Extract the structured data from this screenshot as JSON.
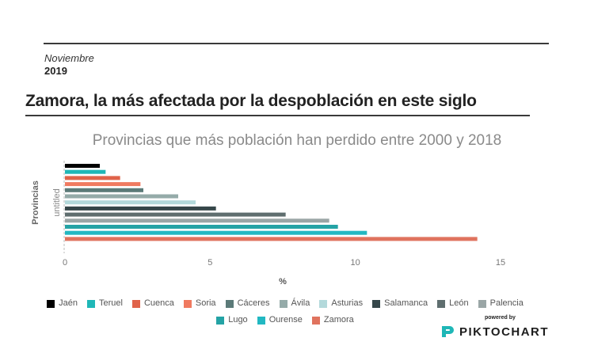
{
  "header": {
    "month": "Noviembre",
    "year": "2019",
    "headline": "Zamora, la más afectada por la despoblación en este siglo"
  },
  "chart_data": {
    "type": "bar",
    "orientation": "horizontal",
    "title": "Provincias que más población han perdido entre 2000 y 2018",
    "xlabel": "%",
    "ylabel": "Provincias",
    "category_label": "untitled",
    "xlim": [
      0,
      15
    ],
    "xticks": [
      "0",
      "5",
      "10",
      "15"
    ],
    "grid": false,
    "legend_position": "bottom",
    "series": [
      {
        "name": "Jaén",
        "value": 1.2,
        "color": "#000000"
      },
      {
        "name": "Teruel",
        "value": 1.4,
        "color": "#1fb7b7"
      },
      {
        "name": "Cuenca",
        "value": 1.9,
        "color": "#e0634a"
      },
      {
        "name": "Soria",
        "value": 2.6,
        "color": "#f07a60"
      },
      {
        "name": "Cáceres",
        "value": 2.7,
        "color": "#5b7a78"
      },
      {
        "name": "Ávila",
        "value": 3.9,
        "color": "#95aba9"
      },
      {
        "name": "Asturias",
        "value": 4.5,
        "color": "#b3d9db"
      },
      {
        "name": "Salamanca",
        "value": 5.2,
        "color": "#36474a"
      },
      {
        "name": "León",
        "value": 7.6,
        "color": "#5f6e6f"
      },
      {
        "name": "Palencia",
        "value": 9.1,
        "color": "#9aa6a6"
      },
      {
        "name": "Lugo",
        "value": 9.4,
        "color": "#24a3a5"
      },
      {
        "name": "Ourense",
        "value": 10.4,
        "color": "#22b8c2"
      },
      {
        "name": "Zamora",
        "value": 14.2,
        "color": "#e0735e"
      }
    ]
  },
  "branding": {
    "powered_by": "powered by",
    "name": "PIKTOCHART"
  }
}
